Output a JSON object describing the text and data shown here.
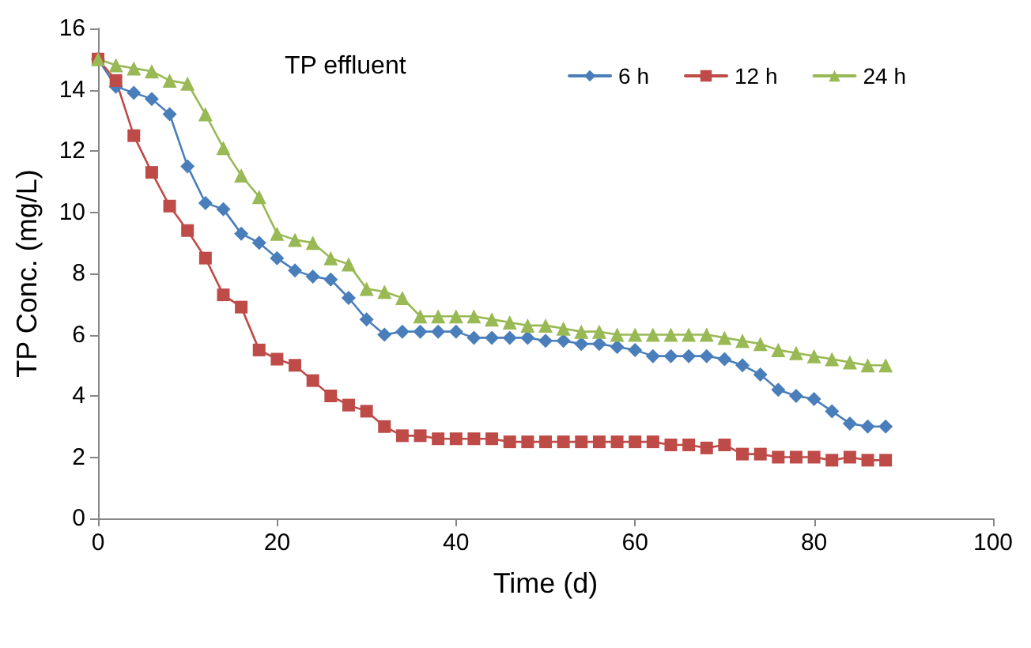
{
  "chart_data": {
    "type": "line",
    "xlabel": "Time (d)",
    "ylabel": "TP Conc. (mg/L)",
    "legend_title": "TP effluent",
    "legend": "top right",
    "grid": false,
    "x": [
      0,
      2,
      4,
      6,
      8,
      10,
      12,
      14,
      16,
      18,
      20,
      22,
      24,
      26,
      28,
      30,
      32,
      34,
      36,
      38,
      40,
      42,
      44,
      46,
      48,
      50,
      52,
      54,
      56,
      58,
      60,
      62,
      64,
      66,
      68,
      70,
      72,
      74,
      76,
      78,
      80,
      82,
      84,
      86,
      88
    ],
    "xlim": [
      0,
      100
    ],
    "xticks": [
      0,
      20,
      40,
      60,
      80,
      100
    ],
    "ylim": [
      0,
      16
    ],
    "yticks": [
      0,
      2,
      4,
      6,
      8,
      10,
      12,
      14,
      16
    ],
    "series": [
      {
        "name": "6 h",
        "color": "#4a7ebb",
        "marker": "diamond",
        "values": [
          15,
          14.1,
          13.9,
          13.7,
          13.2,
          11.5,
          10.3,
          10.1,
          9.3,
          9.0,
          8.5,
          8.1,
          7.9,
          7.8,
          7.2,
          6.5,
          6.0,
          6.1,
          6.1,
          6.1,
          6.1,
          5.9,
          5.9,
          5.9,
          5.9,
          5.8,
          5.8,
          5.7,
          5.7,
          5.6,
          5.5,
          5.3,
          5.3,
          5.3,
          5.3,
          5.2,
          5.0,
          4.7,
          4.2,
          4.0,
          3.9,
          3.5,
          3.1,
          3.0,
          3.0
        ]
      },
      {
        "name": "12 h",
        "color": "#be4b48",
        "marker": "square",
        "values": [
          15,
          14.3,
          12.5,
          11.3,
          10.2,
          9.4,
          8.5,
          7.3,
          6.9,
          5.5,
          5.2,
          5.0,
          4.5,
          4.0,
          3.7,
          3.5,
          3.0,
          2.7,
          2.7,
          2.6,
          2.6,
          2.6,
          2.6,
          2.5,
          2.5,
          2.5,
          2.5,
          2.5,
          2.5,
          2.5,
          2.5,
          2.5,
          2.4,
          2.4,
          2.3,
          2.4,
          2.1,
          2.1,
          2.0,
          2.0,
          2.0,
          1.9,
          2.0,
          1.9,
          1.9
        ]
      },
      {
        "name": "24 h",
        "color": "#98b954",
        "marker": "triangle",
        "values": [
          15,
          14.8,
          14.7,
          14.6,
          14.3,
          14.2,
          13.2,
          12.1,
          11.2,
          10.5,
          9.3,
          9.1,
          9.0,
          8.5,
          8.3,
          7.5,
          7.4,
          7.2,
          6.6,
          6.6,
          6.6,
          6.6,
          6.5,
          6.4,
          6.3,
          6.3,
          6.2,
          6.1,
          6.1,
          6.0,
          6.0,
          6.0,
          6.0,
          6.0,
          6.0,
          5.9,
          5.8,
          5.7,
          5.5,
          5.4,
          5.3,
          5.2,
          5.1,
          5.0,
          5.0
        ]
      }
    ]
  }
}
